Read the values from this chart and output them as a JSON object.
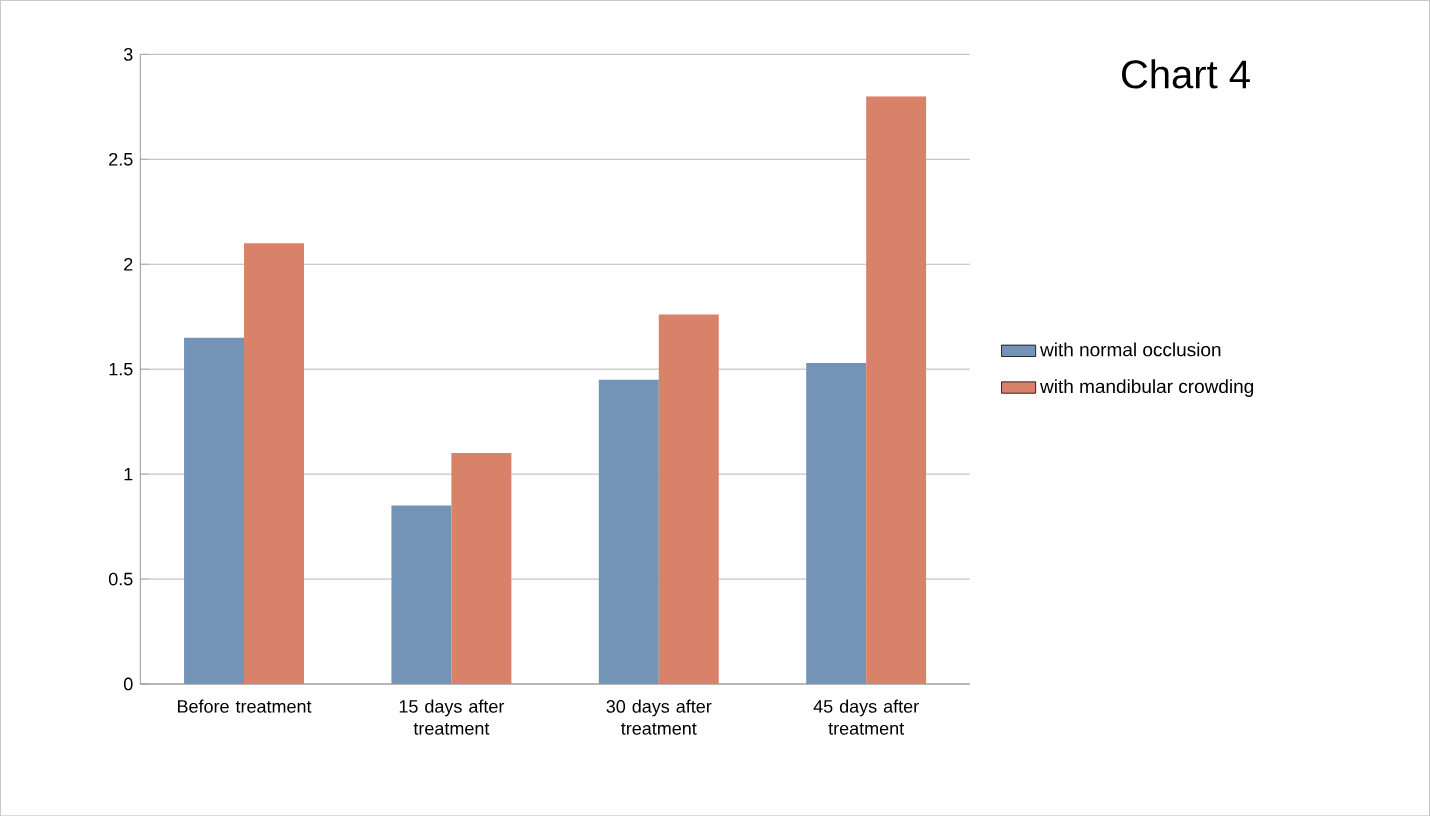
{
  "chart_data": {
    "type": "bar",
    "title": "Chart 4",
    "categories": [
      "Before treatment",
      "15 days after treatment",
      "30 days after treatment",
      "45 days after treatment"
    ],
    "series": [
      {
        "name": "with normal occlusion",
        "color": "#7393b7",
        "values": [
          1.65,
          0.85,
          1.45,
          1.53
        ]
      },
      {
        "name": "with mandibular crowding",
        "color": "#d9826a",
        "values": [
          2.1,
          1.1,
          1.76,
          2.8
        ]
      }
    ],
    "ylim": [
      0,
      3
    ],
    "yticks": [
      0,
      0.5,
      1,
      1.5,
      2,
      2.5,
      3
    ],
    "grid": "y",
    "legend": "right"
  }
}
